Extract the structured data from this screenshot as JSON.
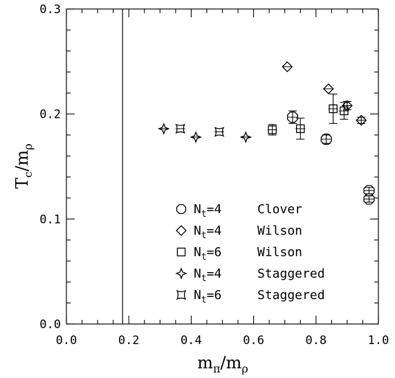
{
  "chart_data": {
    "type": "scatter",
    "xlabel": "m_π/m_ρ",
    "ylabel": "T_c/m_ρ",
    "xlim": [
      0,
      1
    ],
    "ylim": [
      0,
      0.3
    ],
    "x_ticks": [
      "0.0",
      "0.2",
      "0.4",
      "0.6",
      "0.8",
      "1.0"
    ],
    "y_ticks": [
      "0.0",
      "0.1",
      "0.2",
      "0.3"
    ],
    "vertical_line_x": 0.18,
    "grid": false,
    "legend_position": "bottom-right",
    "series": [
      {
        "name": "N_t=4 Clover",
        "legend_lhs": "N",
        "legend_sub": "t",
        "legend_rhs": "=4",
        "legend_label": "Clover",
        "marker": "octagon",
        "points": [
          {
            "x": 0.725,
            "y": 0.197,
            "err": 0.006
          },
          {
            "x": 0.833,
            "y": 0.176,
            "err": 0.004
          },
          {
            "x": 0.97,
            "y": 0.127,
            "err": 0.003
          },
          {
            "x": 0.97,
            "y": 0.119,
            "err": 0.003
          }
        ]
      },
      {
        "name": "N_t=4 Wilson",
        "legend_lhs": "N",
        "legend_sub": "t",
        "legend_rhs": "=4",
        "legend_label": "Wilson",
        "marker": "diamond",
        "points": [
          {
            "x": 0.708,
            "y": 0.245,
            "err": 0.0
          },
          {
            "x": 0.84,
            "y": 0.224,
            "err": 0.0
          },
          {
            "x": 0.9,
            "y": 0.208,
            "err": 0.004
          },
          {
            "x": 0.945,
            "y": 0.194,
            "err": 0.003
          }
        ]
      },
      {
        "name": "N_t=6 Wilson",
        "legend_lhs": "N",
        "legend_sub": "t",
        "legend_rhs": "=6",
        "legend_label": "Wilson",
        "marker": "square",
        "points": [
          {
            "x": 0.66,
            "y": 0.185,
            "err": 0.005
          },
          {
            "x": 0.75,
            "y": 0.186,
            "err": 0.01
          },
          {
            "x": 0.855,
            "y": 0.205,
            "err": 0.014
          },
          {
            "x": 0.89,
            "y": 0.203,
            "err": 0.008
          }
        ]
      },
      {
        "name": "N_t=4 Staggered",
        "legend_lhs": "N",
        "legend_sub": "t",
        "legend_rhs": "=4",
        "legend_label": "Staggered",
        "marker": "star4",
        "points": [
          {
            "x": 0.312,
            "y": 0.186,
            "err": 0.0
          },
          {
            "x": 0.415,
            "y": 0.178,
            "err": 0.0
          },
          {
            "x": 0.575,
            "y": 0.178,
            "err": 0.0
          }
        ]
      },
      {
        "name": "N_t=6 Staggered",
        "legend_lhs": "N",
        "legend_sub": "t",
        "legend_rhs": "=6",
        "legend_label": "Staggered",
        "marker": "concave-square",
        "points": [
          {
            "x": 0.365,
            "y": 0.186,
            "err": 0.0
          },
          {
            "x": 0.49,
            "y": 0.183,
            "err": 0.0
          }
        ]
      }
    ]
  }
}
